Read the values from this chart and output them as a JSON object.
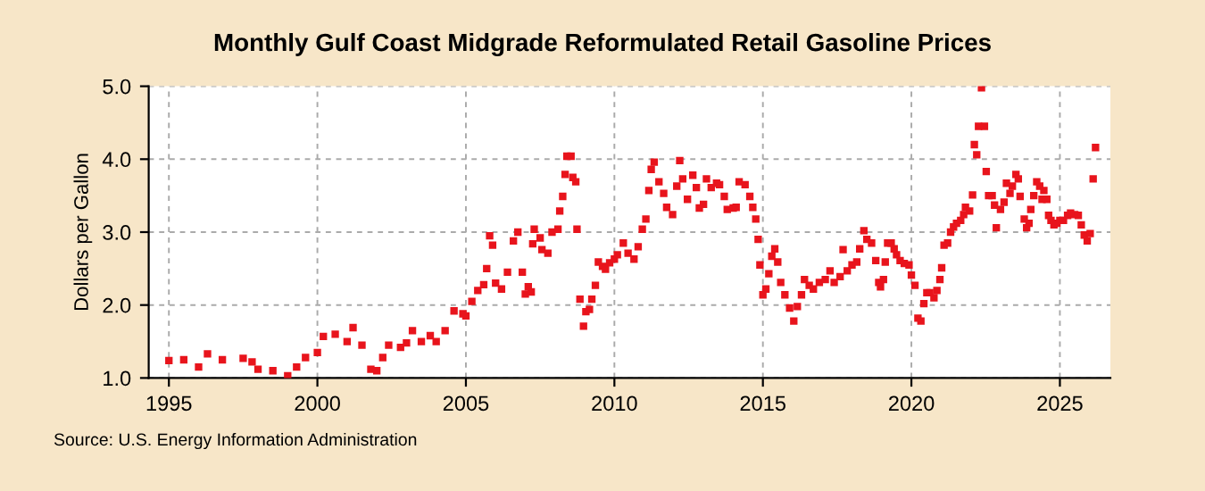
{
  "chart_data": {
    "type": "scatter",
    "title": "Monthly Gulf Coast Midgrade Reformulated Retail Gasoline Prices",
    "ylabel": "Dollars per Gallon",
    "annotations": [
      "Source: U.S. Energy Information Administration"
    ],
    "series": [
      {
        "color": "#e8141c",
        "x": [
          1995.0,
          1995.5,
          1996.0,
          1996.3,
          1996.8,
          1997.5,
          1997.8,
          1998.0,
          1998.5,
          1999.0,
          1999.3,
          1999.6,
          2000.0,
          2000.2,
          2000.6,
          2001.0,
          2001.2,
          2001.5,
          2001.8,
          2002.0,
          2002.2,
          2002.4,
          2002.8,
          2003.0,
          2003.2,
          2003.5,
          2003.8,
          2004.0,
          2004.3,
          2004.6,
          2004.9,
          2005.0,
          2005.2,
          2005.4,
          2005.6,
          2005.7,
          2005.8,
          2005.9,
          2006.0,
          2006.2,
          2006.4,
          2006.6,
          2006.75,
          2006.9,
          2007.0,
          2007.1,
          2007.2,
          2007.25,
          2007.3,
          2007.5,
          2007.56,
          2007.76,
          2007.9,
          2008.1,
          2008.16,
          2008.26,
          2008.34,
          2008.4,
          2008.54,
          2008.6,
          2008.7,
          2008.74,
          2008.84,
          2008.96,
          2009.04,
          2009.16,
          2009.24,
          2009.36,
          2009.46,
          2009.6,
          2009.7,
          2009.84,
          2010.0,
          2010.1,
          2010.3,
          2010.46,
          2010.66,
          2010.8,
          2010.94,
          2011.06,
          2011.16,
          2011.24,
          2011.34,
          2011.5,
          2011.66,
          2011.76,
          2011.96,
          2012.1,
          2012.2,
          2012.3,
          2012.46,
          2012.64,
          2012.76,
          2012.86,
          2013.0,
          2013.1,
          2013.26,
          2013.44,
          2013.54,
          2013.7,
          2013.8,
          2014.0,
          2014.1,
          2014.2,
          2014.4,
          2014.56,
          2014.66,
          2014.76,
          2014.84,
          2014.9,
          2015.0,
          2015.1,
          2015.2,
          2015.3,
          2015.4,
          2015.5,
          2015.6,
          2015.74,
          2015.9,
          2016.04,
          2016.16,
          2016.3,
          2016.4,
          2016.56,
          2016.7,
          2016.9,
          2017.1,
          2017.26,
          2017.4,
          2017.6,
          2017.7,
          2017.84,
          2018.0,
          2018.16,
          2018.26,
          2018.4,
          2018.5,
          2018.66,
          2018.8,
          2018.9,
          2018.96,
          2019.06,
          2019.12,
          2019.2,
          2019.32,
          2019.42,
          2019.5,
          2019.62,
          2019.76,
          2019.92,
          2020.0,
          2020.12,
          2020.22,
          2020.32,
          2020.42,
          2020.52,
          2020.62,
          2020.76,
          2020.86,
          2020.96,
          2021.02,
          2021.1,
          2021.22,
          2021.32,
          2021.42,
          2021.52,
          2021.66,
          2021.76,
          2021.82,
          2021.96,
          2022.06,
          2022.12,
          2022.2,
          2022.26,
          2022.36,
          2022.46,
          2022.52,
          2022.6,
          2022.72,
          2022.8,
          2022.86,
          2023.0,
          2023.12,
          2023.2,
          2023.32,
          2023.4,
          2023.52,
          2023.6,
          2023.66,
          2023.8,
          2023.88,
          2023.96,
          2024.02,
          2024.12,
          2024.22,
          2024.32,
          2024.4,
          2024.46,
          2024.56,
          2024.62,
          2024.7,
          2024.8,
          2024.9,
          2025.0,
          2025.12,
          2025.26,
          2025.36,
          2025.5,
          2025.62,
          2025.72,
          2025.82,
          2025.92,
          2026.02,
          2026.12,
          2026.2
        ],
        "values": [
          1.24,
          1.25,
          1.15,
          1.33,
          1.25,
          1.27,
          1.22,
          1.12,
          1.1,
          1.03,
          1.15,
          1.28,
          1.35,
          1.57,
          1.6,
          1.5,
          1.69,
          1.45,
          1.12,
          1.1,
          1.28,
          1.45,
          1.42,
          1.48,
          1.65,
          1.5,
          1.58,
          1.5,
          1.65,
          1.92,
          1.88,
          1.85,
          2.05,
          2.2,
          2.28,
          2.5,
          2.95,
          2.82,
          2.3,
          2.22,
          2.45,
          2.88,
          3.0,
          2.45,
          2.15,
          2.25,
          2.18,
          2.84,
          3.04,
          2.92,
          2.76,
          2.71,
          3.0,
          3.04,
          3.29,
          3.49,
          3.79,
          4.04,
          4.04,
          3.75,
          3.69,
          3.04,
          2.08,
          1.71,
          1.91,
          1.94,
          2.08,
          2.27,
          2.59,
          2.53,
          2.49,
          2.58,
          2.63,
          2.69,
          2.85,
          2.71,
          2.63,
          2.8,
          3.04,
          3.18,
          3.57,
          3.86,
          3.96,
          3.69,
          3.53,
          3.34,
          3.24,
          3.63,
          3.98,
          3.73,
          3.45,
          3.78,
          3.61,
          3.33,
          3.38,
          3.73,
          3.61,
          3.67,
          3.65,
          3.49,
          3.31,
          3.33,
          3.34,
          3.69,
          3.65,
          3.49,
          3.34,
          3.18,
          2.9,
          2.55,
          2.14,
          2.22,
          2.43,
          2.67,
          2.77,
          2.59,
          2.31,
          2.14,
          1.96,
          1.78,
          1.98,
          2.14,
          2.35,
          2.27,
          2.22,
          2.31,
          2.35,
          2.47,
          2.31,
          2.39,
          2.76,
          2.47,
          2.55,
          2.59,
          2.77,
          3.02,
          2.9,
          2.85,
          2.61,
          2.31,
          2.25,
          2.35,
          2.59,
          2.85,
          2.85,
          2.77,
          2.69,
          2.61,
          2.57,
          2.55,
          2.41,
          2.27,
          1.82,
          1.78,
          2.02,
          2.17,
          2.17,
          2.1,
          2.2,
          2.35,
          2.51,
          2.82,
          2.85,
          3.0,
          3.07,
          3.12,
          3.16,
          3.24,
          3.34,
          3.29,
          3.51,
          4.2,
          4.06,
          4.45,
          4.98,
          4.45,
          3.83,
          3.5,
          3.5,
          3.37,
          3.06,
          3.31,
          3.41,
          3.67,
          3.53,
          3.63,
          3.79,
          3.73,
          3.49,
          3.18,
          3.06,
          3.12,
          3.31,
          3.5,
          3.69,
          3.63,
          3.45,
          3.57,
          3.45,
          3.23,
          3.16,
          3.1,
          3.12,
          3.16,
          3.16,
          3.23,
          3.26,
          3.24,
          3.23,
          3.1,
          2.96,
          2.88,
          2.98,
          3.73,
          4.16
        ]
      }
    ],
    "marker": "square",
    "xlim": [
      1994.32,
      2026.7
    ],
    "xticks": [
      1995,
      2000,
      2005,
      2010,
      2015,
      2020,
      2025
    ],
    "ylim": [
      1.0,
      5.0
    ],
    "yticks": [
      {
        "value": 1.0,
        "label": "1.0"
      },
      {
        "value": 2.0,
        "label": "2.0"
      },
      {
        "value": 3.0,
        "label": "3.0"
      },
      {
        "value": 4.0,
        "label": "4.0"
      },
      {
        "value": 5.0,
        "label": "5.0"
      }
    ],
    "grid": true,
    "legend": false
  }
}
